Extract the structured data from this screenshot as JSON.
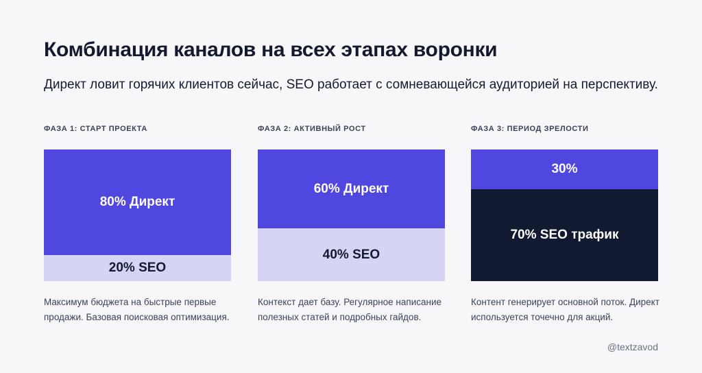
{
  "header": {
    "title": "Комбинация каналов на всех этапах воронки",
    "subtitle": "Директ ловит горячих клиентов сейчас, SEO работает с сомневающейся аудиторией на перспективу."
  },
  "colors": {
    "direct": "#5046e0",
    "seo_light": "#d6d4f5",
    "seo_dark": "#111a30"
  },
  "chart_data": {
    "type": "bar",
    "stacked": true,
    "categories": [
      "ФАЗА 1: СТАРТ ПРОЕКТА",
      "ФАЗА 2: АКТИВНЫЙ РОСТ",
      "ФАЗА 3: ПЕРИОД ЗРЕЛОСТИ"
    ],
    "series": [
      {
        "values": [
          80,
          60,
          30
        ],
        "labels": [
          "80% Директ",
          "60% Директ",
          "30%"
        ]
      },
      {
        "values": [
          20,
          40,
          70
        ],
        "labels": [
          "20% SEO",
          "40% SEO",
          "70% SEO трафик"
        ]
      }
    ],
    "ylim": [
      0,
      100
    ],
    "descriptions": [
      "Максимум бюджета на быстрые первые продажи. Базовая поисковая оптимизация.",
      "Контекст дает базу. Регулярное написание полезных статей и подробных гайдов.",
      "Контент генерирует основной поток. Директ используется точечно для акций."
    ]
  },
  "footer": {
    "watermark": "@textzavod"
  }
}
